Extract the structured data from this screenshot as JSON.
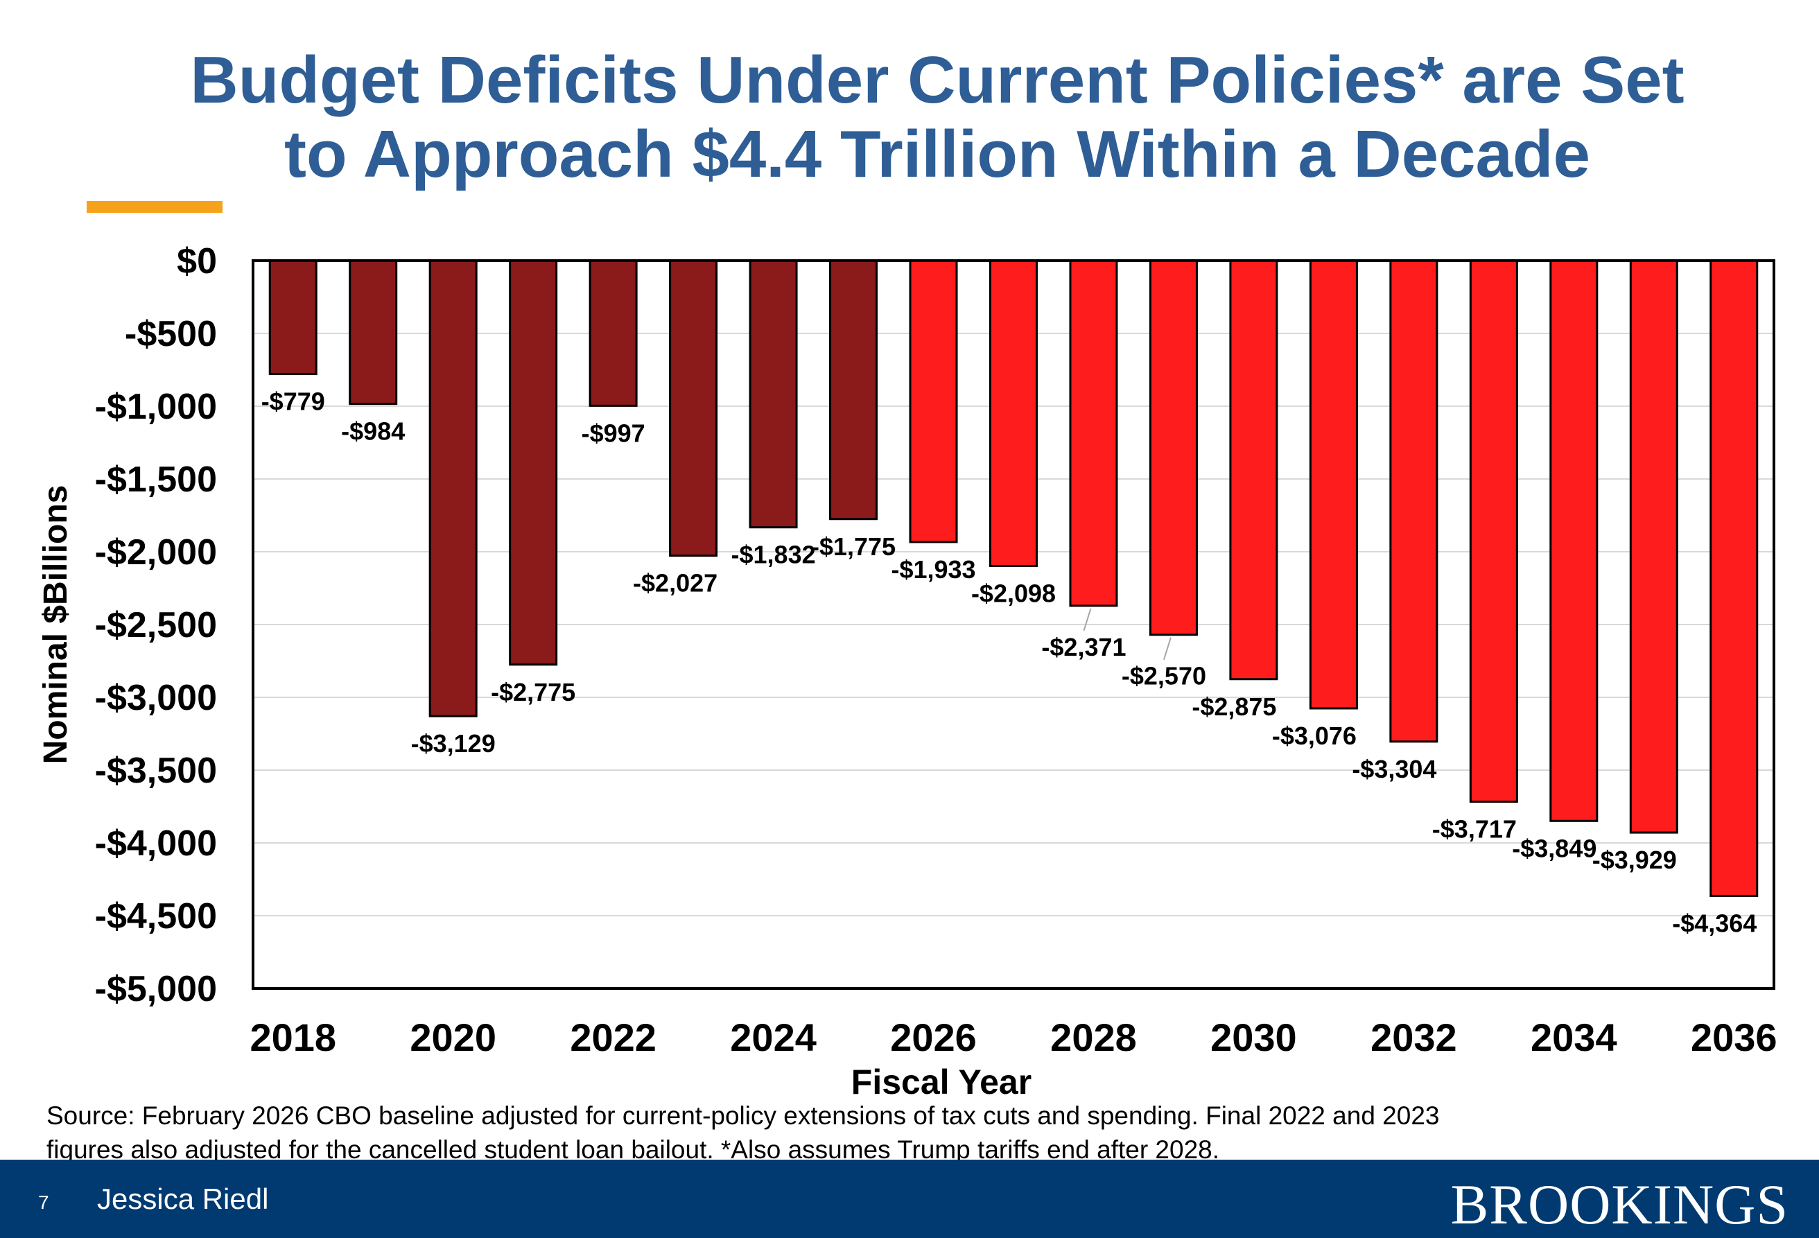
{
  "title_lines": [
    "Budget Deficits Under Current Policies* are Set",
    "to Approach $4.4 Trillion Within a Decade"
  ],
  "colors": {
    "title": "#2e5e95",
    "accent": "#f7a21b",
    "actual": "#8b1a1a",
    "projected": "#ff1c1c",
    "footer": "#003a70"
  },
  "chart_data": {
    "type": "bar",
    "xlabel": "Fiscal Year",
    "ylabel": "Nominal $Billions",
    "ylim": [
      -5000,
      0
    ],
    "yticks": [
      0,
      -500,
      -1000,
      -1500,
      -2000,
      -2500,
      -3000,
      -3500,
      -4000,
      -4500,
      -5000
    ],
    "ytick_labels": [
      "$0",
      "-$500",
      "-$1,000",
      "-$1,500",
      "-$2,000",
      "-$2,500",
      "-$3,000",
      "-$3,500",
      "-$4,000",
      "-$4,500",
      "-$5,000"
    ],
    "grid": true,
    "categories": [
      2018,
      2019,
      2020,
      2021,
      2022,
      2023,
      2024,
      2025,
      2026,
      2027,
      2028,
      2029,
      2030,
      2031,
      2032,
      2033,
      2034,
      2035,
      2036
    ],
    "xtick_labels": [
      "2018",
      "2020",
      "2022",
      "2024",
      "2026",
      "2028",
      "2030",
      "2032",
      "2034",
      "2036"
    ],
    "values": [
      -779,
      -984,
      -3129,
      -2775,
      -997,
      -2027,
      -1832,
      -1775,
      -1933,
      -2098,
      -2371,
      -2570,
      -2875,
      -3076,
      -3304,
      -3717,
      -3849,
      -3929,
      -4364
    ],
    "data_labels": [
      "-$779",
      "-$984",
      "-$3,129",
      "-$2,775",
      "-$997",
      "-$2,027",
      "-$1,832",
      "-$1,775",
      "-$1,933",
      "-$2,098",
      "-$2,371",
      "-$2,570",
      "-$2,875",
      "-$3,076",
      "-$3,304",
      "-$3,717",
      "-$3,849",
      "-$3,929",
      "-$4,364"
    ],
    "series_type": [
      "actual",
      "actual",
      "actual",
      "actual",
      "actual",
      "actual",
      "actual",
      "actual",
      "projected",
      "projected",
      "projected",
      "projected",
      "projected",
      "projected",
      "projected",
      "projected",
      "projected",
      "projected",
      "projected"
    ]
  },
  "source_lines": [
    "Source: February 2026 CBO baseline adjusted for current-policy extensions of tax cuts and spending. Final 2022 and 2023",
    "figures also adjusted for the cancelled student loan bailout.  *Also assumes Trump tariffs end after 2028."
  ],
  "footer": {
    "page_number": "7",
    "author": "Jessica Riedl",
    "logo": "BROOKINGS"
  }
}
